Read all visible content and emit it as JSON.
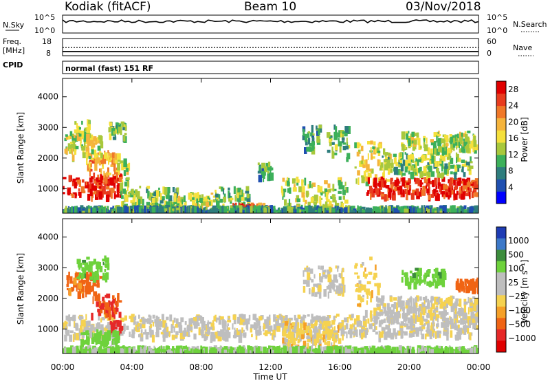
{
  "header": {
    "station": "Kodiak (fitACF)",
    "beam": "Beam 10",
    "date": "03/Nov/2018"
  },
  "noise_panel": {
    "left_label": "N.Sky",
    "right_label": "N.Search",
    "left_ticks": [
      "10^5",
      "10^0"
    ],
    "right_ticks": [
      "10^5",
      "10^0"
    ]
  },
  "freq_panel": {
    "left_label_1": "Freq.",
    "left_label_2": "[MHz]",
    "right_label": "Nave",
    "left_ticks": [
      "18",
      "8"
    ],
    "right_ticks": [
      "60",
      "0"
    ]
  },
  "cpid_panel": {
    "label": "CPID",
    "text": "normal (fast) 151 RF"
  },
  "x_axis": {
    "label": "Time UT",
    "ticks": [
      "00:00",
      "04:00",
      "08:00",
      "12:00",
      "16:00",
      "20:00",
      "00:00"
    ]
  },
  "chart_data": [
    {
      "type": "heatmap",
      "name": "power",
      "ylabel": "Slant Range [km]",
      "yticks": [
        1000,
        2000,
        3000,
        4000
      ],
      "ylim": [
        200,
        4600
      ],
      "xlim": [
        0,
        24
      ],
      "colorbar": {
        "label": "Power [dB]",
        "ticks": [
          4,
          8,
          12,
          16,
          20,
          24,
          28
        ],
        "range": [
          0,
          30
        ],
        "colors": [
          "#0000ff",
          "#1f4fb0",
          "#2e7d7d",
          "#3cb05a",
          "#a8c83c",
          "#f5e03c",
          "#f5b43c",
          "#f07828",
          "#e83c1e",
          "#e00000"
        ]
      },
      "regions": [
        {
          "t0": 0.0,
          "t1": 3.3,
          "r0": 800,
          "r1": 1500,
          "level": 26
        },
        {
          "t0": 1.4,
          "t1": 3.2,
          "r0": 1500,
          "r1": 2300,
          "level": 20
        },
        {
          "t0": 0.1,
          "t1": 2.2,
          "r0": 2000,
          "r1": 2900,
          "level": 16
        },
        {
          "t0": 0.6,
          "t1": 1.6,
          "r0": 2700,
          "r1": 3300,
          "level": 14
        },
        {
          "t0": 3.0,
          "t1": 3.8,
          "r0": 1000,
          "r1": 2000,
          "level": 14
        },
        {
          "t0": 2.6,
          "t1": 3.6,
          "r0": 2700,
          "r1": 3200,
          "level": 12
        },
        {
          "t0": 3.3,
          "t1": 6.6,
          "r0": 350,
          "r1": 1100,
          "level": 12
        },
        {
          "t0": 6.4,
          "t1": 8.7,
          "r0": 350,
          "r1": 900,
          "level": 14
        },
        {
          "t0": 8.7,
          "t1": 10.7,
          "r0": 350,
          "r1": 1100,
          "level": 12
        },
        {
          "t0": 9.8,
          "t1": 11.8,
          "r0": 250,
          "r1": 550,
          "level": 25
        },
        {
          "t0": 11.2,
          "t1": 12.0,
          "r0": 1400,
          "r1": 1900,
          "level": 10
        },
        {
          "t0": 12.6,
          "t1": 16.4,
          "r0": 300,
          "r1": 1400,
          "level": 14
        },
        {
          "t0": 13.8,
          "t1": 14.8,
          "r0": 2300,
          "r1": 3100,
          "level": 10
        },
        {
          "t0": 15.2,
          "t1": 16.4,
          "r0": 2000,
          "r1": 3100,
          "level": 12
        },
        {
          "t0": 16.8,
          "t1": 18.8,
          "r0": 1200,
          "r1": 2600,
          "level": 16
        },
        {
          "t0": 17.5,
          "t1": 24.0,
          "r0": 800,
          "r1": 1400,
          "level": 27
        },
        {
          "t0": 18.4,
          "t1": 23.5,
          "r0": 1500,
          "r1": 2200,
          "level": 13
        },
        {
          "t0": 19.5,
          "t1": 23.8,
          "r0": 2300,
          "r1": 2900,
          "level": 14
        },
        {
          "t0": 0.0,
          "t1": 24.0,
          "r0": 220,
          "r1": 360,
          "level": 9
        }
      ]
    },
    {
      "type": "heatmap",
      "name": "velocity",
      "ylabel": "Slant Range [km]",
      "yticks": [
        1000,
        2000,
        3000,
        4000
      ],
      "ylim": [
        200,
        4600
      ],
      "xlim": [
        0,
        24
      ],
      "colorbar": {
        "label": "Velocity [m s⁻¹]",
        "ticks": [
          "1000",
          "500",
          "100",
          "25",
          "−25",
          "−100",
          "−500",
          "−1000"
        ],
        "colors": [
          "#1e3cb4",
          "#3c78c8",
          "#3c8c3c",
          "#6ed23c",
          "#bebebe",
          "#bebebe",
          "#f5d250",
          "#f5a028",
          "#f06414",
          "#e62828",
          "#e00000"
        ]
      },
      "regions": [
        {
          "t0": 0.0,
          "t1": 24.0,
          "r0": 800,
          "r1": 1500,
          "vel": 0
        },
        {
          "t0": 0.2,
          "t1": 2.2,
          "r0": 2200,
          "r1": 2900,
          "vel": -300
        },
        {
          "t0": 1.6,
          "t1": 3.3,
          "r0": 1500,
          "r1": 2200,
          "vel": -500
        },
        {
          "t0": 2.7,
          "t1": 3.4,
          "r0": 1000,
          "r1": 1300,
          "vel": -800
        },
        {
          "t0": 0.8,
          "t1": 2.6,
          "r0": 2700,
          "r1": 3400,
          "vel": 200
        },
        {
          "t0": 0.9,
          "t1": 3.2,
          "r0": 600,
          "r1": 1000,
          "vel": 150
        },
        {
          "t0": 16.8,
          "t1": 18.2,
          "r0": 1500,
          "r1": 3400,
          "vel": -60
        },
        {
          "t0": 18.0,
          "t1": 24.0,
          "r0": 1500,
          "r1": 2100,
          "vel": 0
        },
        {
          "t0": 22.6,
          "t1": 24.0,
          "r0": 2300,
          "r1": 2700,
          "vel": -400
        },
        {
          "t0": 19.5,
          "t1": 22.0,
          "r0": 2500,
          "r1": 3000,
          "vel": 200
        },
        {
          "t0": 13.8,
          "t1": 16.2,
          "r0": 2200,
          "r1": 3100,
          "vel": 0
        },
        {
          "t0": 12.6,
          "t1": 16.0,
          "r0": 400,
          "r1": 1300,
          "vel": -60
        },
        {
          "t0": 0.0,
          "t1": 24.0,
          "r0": 220,
          "r1": 360,
          "vel": 120
        }
      ]
    }
  ],
  "colors": {
    "axis": "#000000",
    "background": "#ffffff",
    "no_data": "#ffffff"
  }
}
